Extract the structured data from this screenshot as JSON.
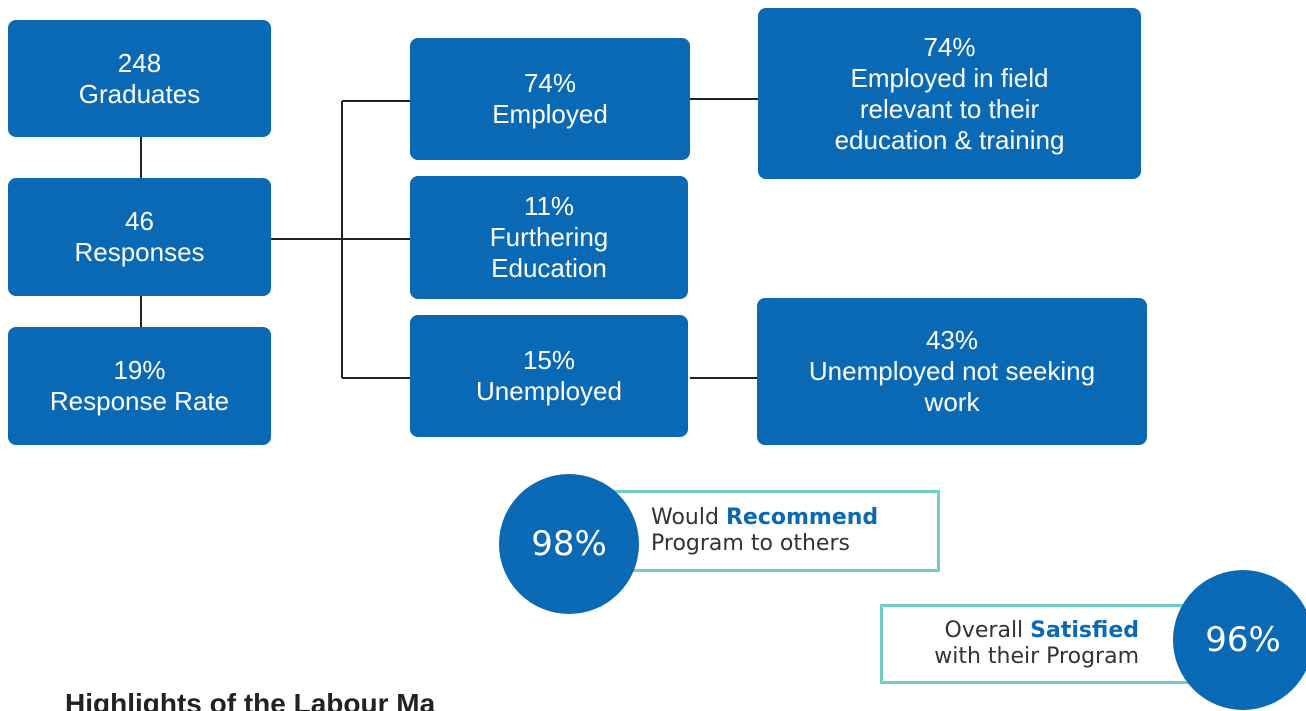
{
  "nodes": [
    {
      "value": "248",
      "lines": [
        "Graduates"
      ]
    },
    {
      "value": "46",
      "lines": [
        "Responses"
      ]
    },
    {
      "value": "19%",
      "lines": [
        "Response Rate"
      ]
    },
    {
      "value": "74%",
      "lines": [
        "Employed"
      ]
    },
    {
      "value": "11%",
      "lines": [
        "Furthering",
        "Education"
      ]
    },
    {
      "value": "15%",
      "lines": [
        "Unemployed"
      ]
    },
    {
      "value": "74%",
      "lines": [
        "Employed in field",
        "relevant to their",
        "education & training"
      ]
    },
    {
      "value": "43%",
      "lines": [
        "Unemployed not seeking",
        "work"
      ]
    }
  ],
  "badges": [
    {
      "value": "98%",
      "before": "Would",
      "highlight": "Recommend",
      "after": "Program to others"
    },
    {
      "value": "96%",
      "before": "Overall",
      "highlight": "Satisfied",
      "after": "with their Program"
    }
  ],
  "footer": "Highlights of the Labour Ma"
}
